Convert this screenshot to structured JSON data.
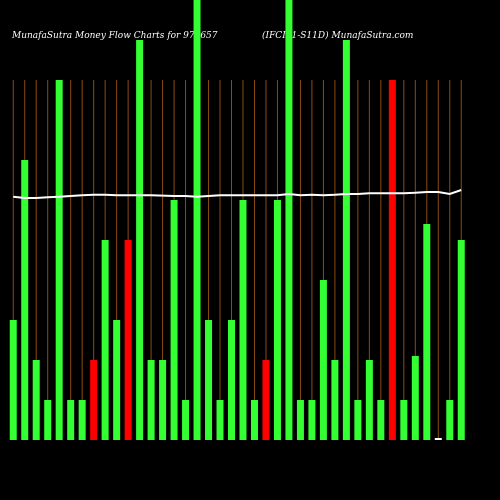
{
  "chart_data": {
    "type": "bar",
    "title": "MunafaSutra  Money Flow  Charts for 972657",
    "subtitle": "(IFCI01-S11D) MunafaSutra.com",
    "categories": [
      null,
      null,
      null,
      null,
      null,
      null,
      null,
      null,
      null,
      null,
      null,
      null,
      null,
      null,
      null,
      null,
      null,
      null,
      null,
      null,
      null,
      null,
      null,
      null,
      null,
      null,
      null,
      null,
      null,
      null,
      null,
      null,
      null,
      null,
      null,
      null,
      null,
      null,
      null,
      null
    ],
    "values": [
      3,
      7,
      2,
      1,
      9,
      1,
      1,
      2,
      5,
      3,
      5,
      10,
      2,
      2,
      6,
      1,
      11,
      3,
      1,
      3,
      6,
      1,
      2,
      6,
      11,
      1,
      1,
      4,
      2,
      10,
      1,
      2,
      1,
      9,
      1,
      2.1,
      5.4,
      0.05,
      1,
      5
    ],
    "colors": [
      "#33ff33",
      "#33ff33",
      "#33ff33",
      "#33ff33",
      "#33ff33",
      "#33ff33",
      "#33ff33",
      "#ff0000",
      "#33ff33",
      "#33ff33",
      "#ff0000",
      "#33ff33",
      "#33ff33",
      "#33ff33",
      "#33ff33",
      "#33ff33",
      "#33ff33",
      "#33ff33",
      "#33ff33",
      "#33ff33",
      "#33ff33",
      "#33ff33",
      "#ff0000",
      "#33ff33",
      "#33ff33",
      "#33ff33",
      "#33ff33",
      "#33ff33",
      "#33ff33",
      "#33ff33",
      "#33ff33",
      "#33ff33",
      "#33ff33",
      "#ff0000",
      "#33ff33",
      "#33ff33",
      "#33ff33",
      "#ffffff",
      "#33ff33",
      "#33ff33"
    ],
    "line": {
      "color": "#ffffff",
      "values": [
        6.08,
        6.05,
        6.05,
        6.07,
        6.08,
        6.1,
        6.12,
        6.13,
        6.13,
        6.12,
        6.12,
        6.12,
        6.12,
        6.11,
        6.1,
        6.1,
        6.08,
        6.1,
        6.12,
        6.12,
        6.12,
        6.12,
        6.12,
        6.12,
        6.15,
        6.12,
        6.13,
        6.12,
        6.13,
        6.15,
        6.15,
        6.17,
        6.17,
        6.17,
        6.17,
        6.18,
        6.2,
        6.2,
        6.15,
        6.25
      ]
    },
    "ylim": [
      0,
      11
    ],
    "grid_color": "#8b4a12"
  }
}
